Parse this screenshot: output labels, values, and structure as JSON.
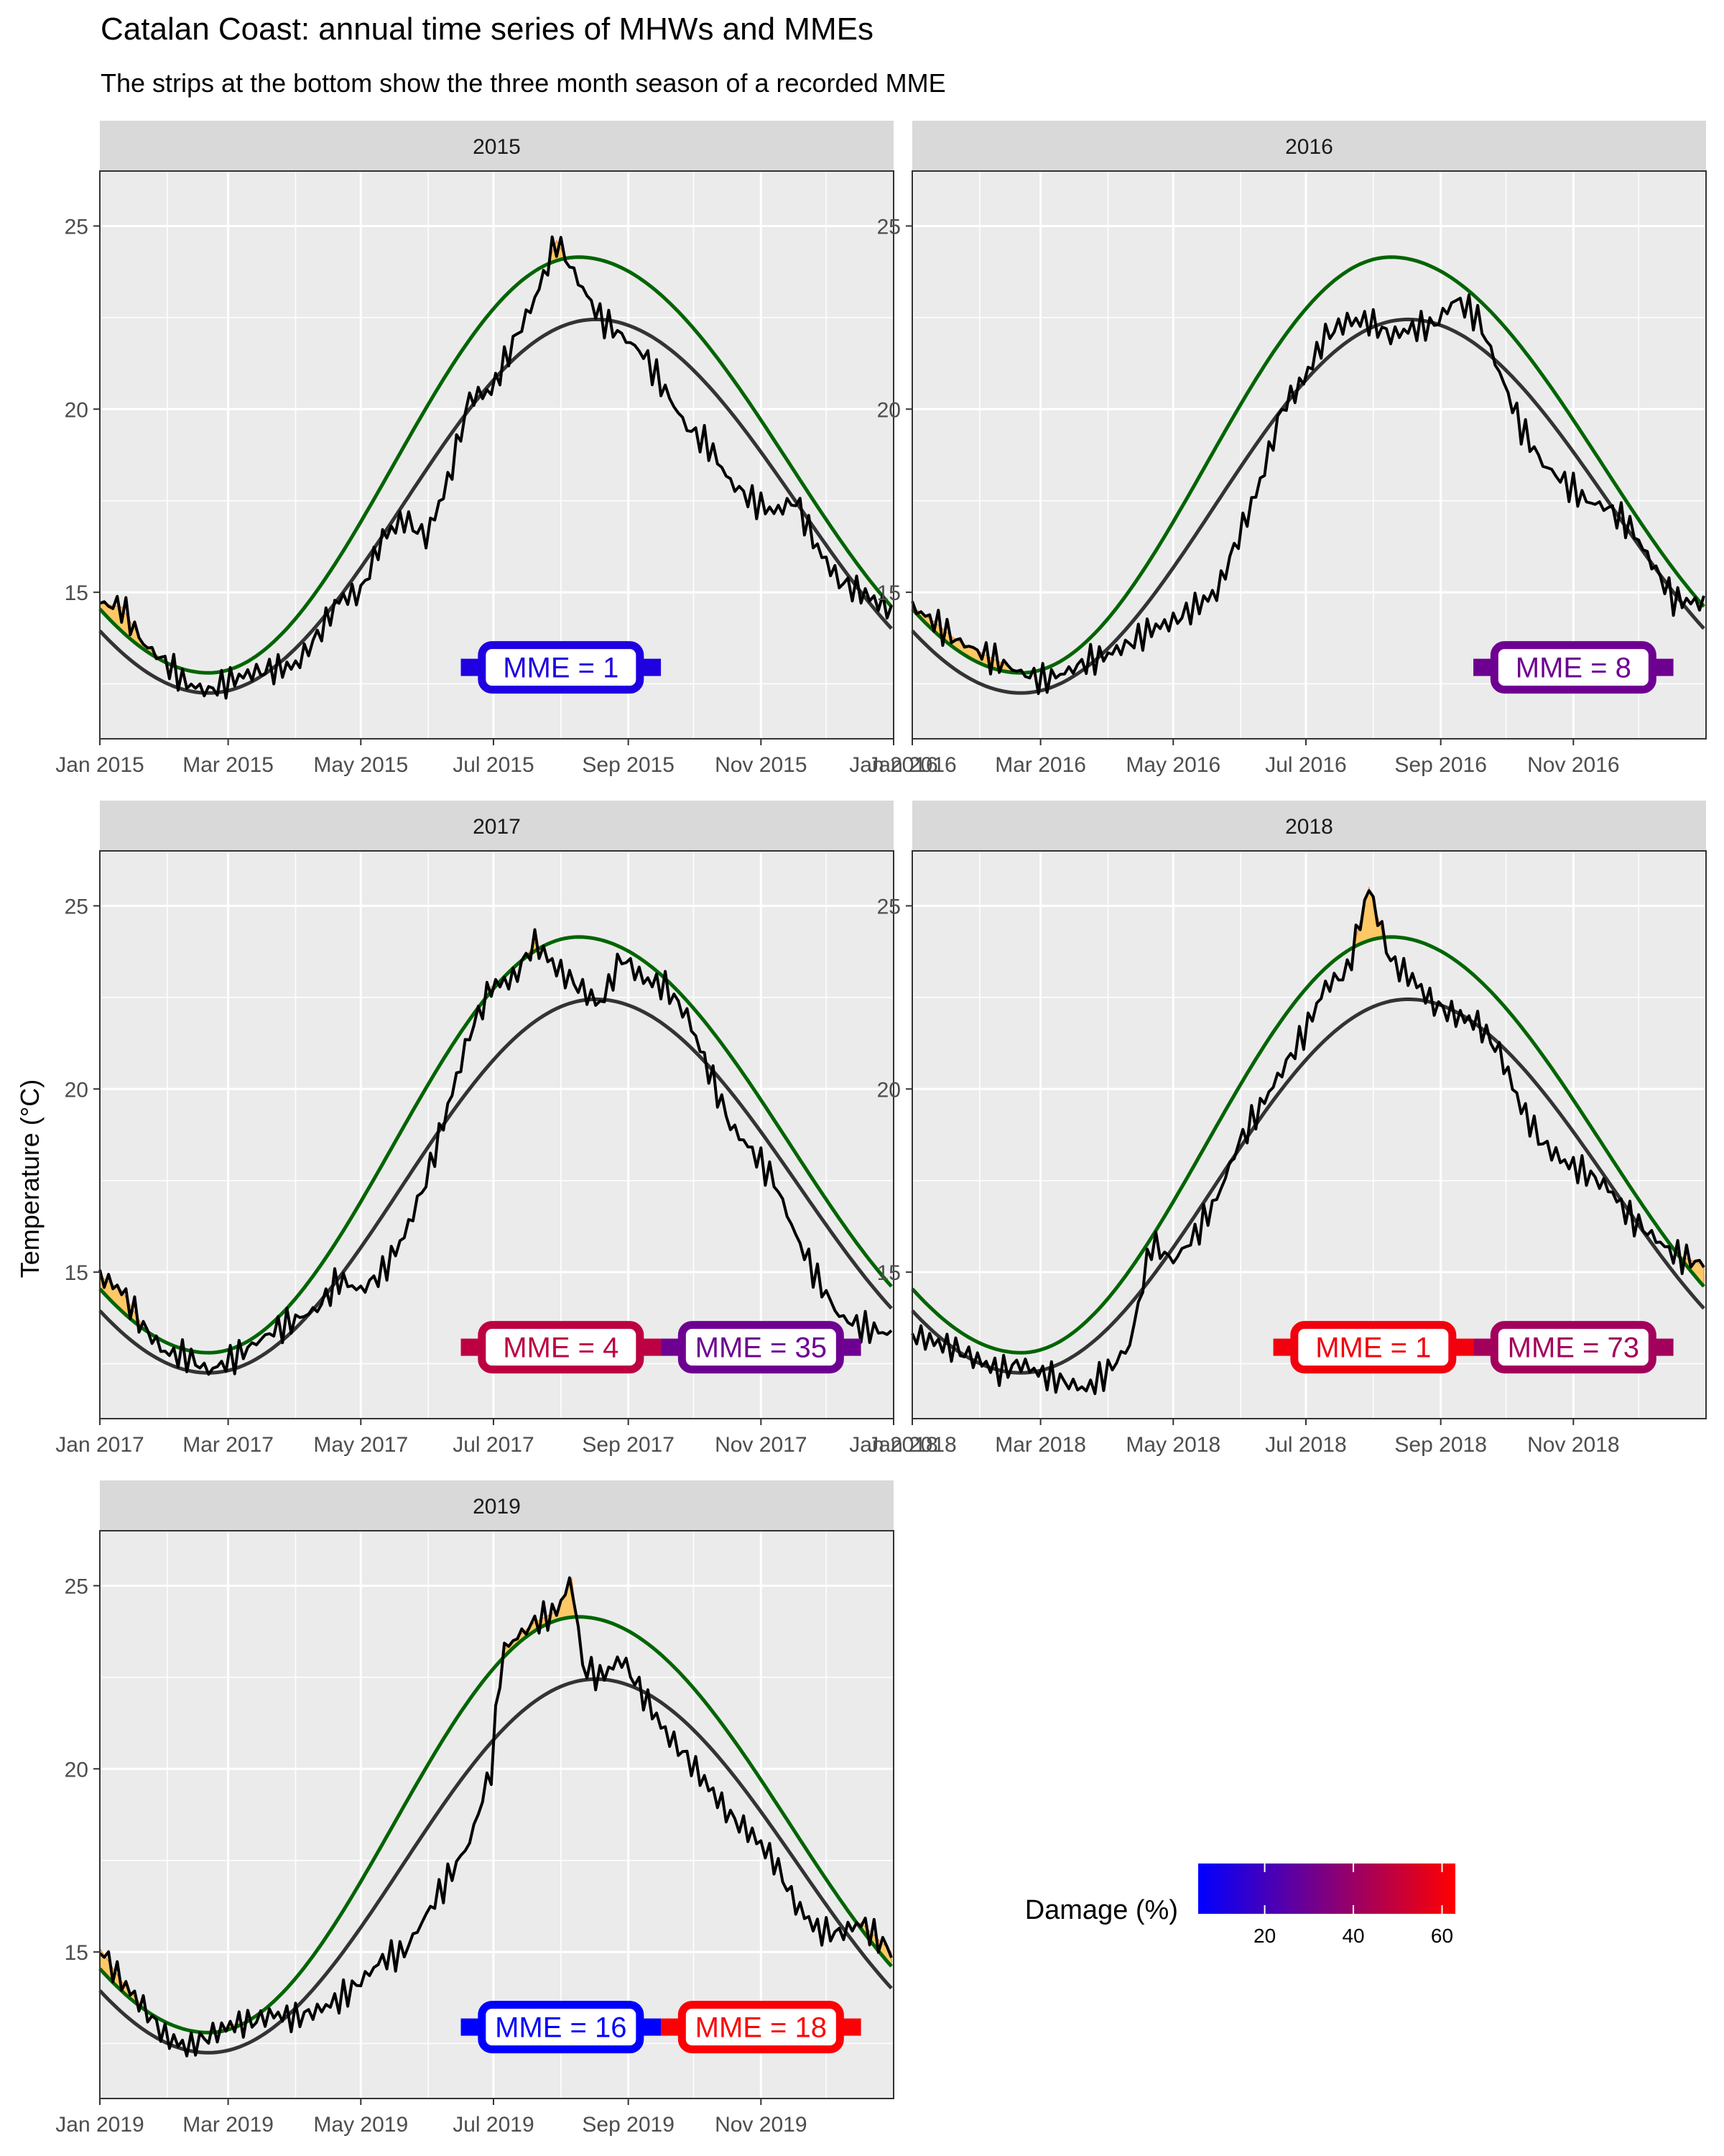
{
  "figure": {
    "title": "Catalan Coast: annual time series of MHWs and MMEs",
    "subtitle": "The strips at the bottom show the three month season of a recorded MME",
    "ylabel": "Temperature (°C)"
  },
  "colors": {
    "panel_bg": "#ebebeb",
    "strip_bg": "#d9d9d9",
    "grid": "#ffffff",
    "temperature_line": "#000000",
    "climatology_line": "#333333",
    "threshold_line": "#006400",
    "mhw_fill": "#ffc866",
    "mhw_peak_fill": "#f47d20"
  },
  "legend": {
    "title": "Damage (%)",
    "ticks": [
      "20",
      "40",
      "60"
    ],
    "tick_values": [
      20,
      40,
      60
    ],
    "range": [
      5,
      63
    ],
    "gradient_low": "#0000ff",
    "gradient_high": "#ff0000"
  },
  "chart_data": {
    "type": "line",
    "ylim": [
      11,
      26.5
    ],
    "yticks": [
      15,
      20,
      25
    ],
    "ytick_labels": [
      "15",
      "20",
      "25"
    ],
    "x_tick_months": [
      "Jan",
      "Mar",
      "May",
      "Jul",
      "Sep",
      "Nov"
    ],
    "climatology": {
      "min_doy": 50,
      "min": 12.25,
      "max_doy": 228,
      "max": 22.45
    },
    "threshold": {
      "min_doy": 50,
      "min": 12.8,
      "max_doy": 220,
      "max": 24.15
    },
    "panels": [
      {
        "year": "2015",
        "strip": "2015",
        "x_tick_labels": [
          "Jan 2015",
          "Mar 2015",
          "May 2015",
          "Jul 2015",
          "Sep 2015",
          "Nov 2015",
          "Jan 2016"
        ],
        "temperature_points": [
          [
            0,
            14.7
          ],
          [
            10,
            14.6
          ],
          [
            20,
            13.6
          ],
          [
            30,
            13.1
          ],
          [
            40,
            12.5
          ],
          [
            50,
            12.3
          ],
          [
            60,
            12.6
          ],
          [
            70,
            12.8
          ],
          [
            80,
            12.9
          ],
          [
            90,
            13.0
          ],
          [
            100,
            13.8
          ],
          [
            110,
            14.8
          ],
          [
            120,
            15.0
          ],
          [
            130,
            16.5
          ],
          [
            140,
            17.0
          ],
          [
            150,
            16.5
          ],
          [
            160,
            18.0
          ],
          [
            170,
            20.3
          ],
          [
            180,
            20.5
          ],
          [
            190,
            21.8
          ],
          [
            200,
            23.0
          ],
          [
            210,
            24.6
          ],
          [
            220,
            23.5
          ],
          [
            230,
            22.5
          ],
          [
            240,
            22.0
          ],
          [
            250,
            21.5
          ],
          [
            260,
            20.5
          ],
          [
            270,
            19.5
          ],
          [
            280,
            19.0
          ],
          [
            290,
            18.0
          ],
          [
            300,
            17.5
          ],
          [
            310,
            17.2
          ],
          [
            320,
            17.5
          ],
          [
            330,
            16.2
          ],
          [
            340,
            15.3
          ],
          [
            350,
            15.0
          ],
          [
            364,
            14.5
          ]
        ],
        "mme": [
          {
            "label": "MME = 1",
            "value": 1,
            "damage": 12,
            "start_doy": 166,
            "end_doy": 258
          }
        ]
      },
      {
        "year": "2016",
        "strip": "2016",
        "x_tick_labels": [
          "Jan 2016",
          "Mar 2016",
          "May 2016",
          "Jul 2016",
          "Sep 2016",
          "Nov 2016"
        ],
        "temperature_points": [
          [
            0,
            14.6
          ],
          [
            10,
            14.2
          ],
          [
            20,
            13.7
          ],
          [
            30,
            13.4
          ],
          [
            40,
            13.1
          ],
          [
            50,
            12.8
          ],
          [
            60,
            12.6
          ],
          [
            70,
            12.8
          ],
          [
            80,
            13.1
          ],
          [
            90,
            13.3
          ],
          [
            100,
            13.6
          ],
          [
            110,
            14.0
          ],
          [
            120,
            14.2
          ],
          [
            130,
            14.6
          ],
          [
            140,
            15.0
          ],
          [
            150,
            16.5
          ],
          [
            160,
            18.0
          ],
          [
            170,
            20.0
          ],
          [
            180,
            20.8
          ],
          [
            190,
            22.0
          ],
          [
            200,
            22.4
          ],
          [
            210,
            22.4
          ],
          [
            220,
            22.0
          ],
          [
            230,
            22.2
          ],
          [
            240,
            22.3
          ],
          [
            250,
            23.0
          ],
          [
            260,
            22.5
          ],
          [
            270,
            21.0
          ],
          [
            280,
            19.5
          ],
          [
            290,
            18.5
          ],
          [
            300,
            18.0
          ],
          [
            310,
            17.5
          ],
          [
            320,
            17.3
          ],
          [
            330,
            16.8
          ],
          [
            340,
            15.8
          ],
          [
            350,
            14.8
          ],
          [
            364,
            14.7
          ]
        ],
        "mme": [
          {
            "label": "MME = 8",
            "value": 8,
            "damage": 30,
            "start_doy": 258,
            "end_doy": 350
          }
        ]
      },
      {
        "year": "2017",
        "strip": "2017",
        "x_tick_labels": [
          "Jan 2017",
          "Mar 2017",
          "May 2017",
          "Jul 2017",
          "Sep 2017",
          "Nov 2017",
          "Jan 2018"
        ],
        "temperature_points": [
          [
            0,
            14.9
          ],
          [
            10,
            14.5
          ],
          [
            20,
            13.5
          ],
          [
            30,
            12.8
          ],
          [
            40,
            12.7
          ],
          [
            50,
            12.3
          ],
          [
            60,
            12.6
          ],
          [
            70,
            13.0
          ],
          [
            80,
            13.4
          ],
          [
            90,
            13.7
          ],
          [
            100,
            14.0
          ],
          [
            110,
            14.8
          ],
          [
            120,
            14.5
          ],
          [
            130,
            15.0
          ],
          [
            140,
            16.0
          ],
          [
            150,
            17.5
          ],
          [
            160,
            19.5
          ],
          [
            170,
            21.5
          ],
          [
            180,
            22.8
          ],
          [
            190,
            23.0
          ],
          [
            200,
            24.0
          ],
          [
            210,
            23.3
          ],
          [
            220,
            22.8
          ],
          [
            230,
            22.3
          ],
          [
            240,
            23.6
          ],
          [
            250,
            23.0
          ],
          [
            260,
            22.8
          ],
          [
            270,
            22.0
          ],
          [
            280,
            20.5
          ],
          [
            290,
            19.0
          ],
          [
            300,
            18.3
          ],
          [
            310,
            17.5
          ],
          [
            320,
            16.0
          ],
          [
            330,
            14.8
          ],
          [
            340,
            13.8
          ],
          [
            350,
            13.5
          ],
          [
            364,
            13.3
          ]
        ],
        "mme": [
          {
            "label": "MME = 4",
            "value": 4,
            "damage": 48,
            "start_doy": 166,
            "end_doy": 258
          },
          {
            "label": "MME = 35",
            "value": 35,
            "damage": 30,
            "start_doy": 258,
            "end_doy": 350
          }
        ]
      },
      {
        "year": "2018",
        "strip": "2018",
        "x_tick_labels": [
          "Jan 2018",
          "Mar 2018",
          "May 2018",
          "Jul 2018",
          "Sep 2018",
          "Nov 2018"
        ],
        "temperature_points": [
          [
            0,
            13.3
          ],
          [
            10,
            13.1
          ],
          [
            20,
            12.9
          ],
          [
            30,
            12.6
          ],
          [
            40,
            12.3
          ],
          [
            50,
            12.5
          ],
          [
            60,
            12.2
          ],
          [
            70,
            12.0
          ],
          [
            80,
            11.8
          ],
          [
            90,
            12.3
          ],
          [
            100,
            13.0
          ],
          [
            110,
            15.8
          ],
          [
            120,
            15.3
          ],
          [
            130,
            16.0
          ],
          [
            140,
            17.0
          ],
          [
            150,
            18.5
          ],
          [
            160,
            19.5
          ],
          [
            170,
            20.5
          ],
          [
            180,
            21.5
          ],
          [
            190,
            22.8
          ],
          [
            200,
            23.2
          ],
          [
            210,
            25.5
          ],
          [
            220,
            23.5
          ],
          [
            230,
            23.0
          ],
          [
            240,
            22.3
          ],
          [
            250,
            22.0
          ],
          [
            260,
            21.8
          ],
          [
            270,
            21.0
          ],
          [
            280,
            19.5
          ],
          [
            290,
            18.5
          ],
          [
            300,
            18.0
          ],
          [
            310,
            17.7
          ],
          [
            320,
            17.3
          ],
          [
            330,
            16.5
          ],
          [
            340,
            16.0
          ],
          [
            350,
            15.5
          ],
          [
            364,
            15.2
          ]
        ],
        "mme": [
          {
            "label": "MME = 1",
            "value": 1,
            "damage": 60,
            "start_doy": 166,
            "end_doy": 258
          },
          {
            "label": "MME = 73",
            "value": 73,
            "damage": 42,
            "start_doy": 258,
            "end_doy": 350
          }
        ]
      },
      {
        "year": "2019",
        "strip": "2019",
        "x_tick_labels": [
          "Jan 2019",
          "Mar 2019",
          "May 2019",
          "Jul 2019",
          "Sep 2019",
          "Nov 2019"
        ],
        "temperature_points": [
          [
            0,
            15.1
          ],
          [
            10,
            14.2
          ],
          [
            20,
            13.5
          ],
          [
            30,
            12.7
          ],
          [
            40,
            12.4
          ],
          [
            50,
            12.7
          ],
          [
            60,
            13.0
          ],
          [
            70,
            13.1
          ],
          [
            80,
            13.3
          ],
          [
            90,
            13.2
          ],
          [
            100,
            13.4
          ],
          [
            110,
            13.7
          ],
          [
            120,
            14.2
          ],
          [
            130,
            14.8
          ],
          [
            140,
            15.0
          ],
          [
            150,
            16.0
          ],
          [
            160,
            17.0
          ],
          [
            170,
            18.0
          ],
          [
            180,
            20.0
          ],
          [
            185,
            23.2
          ],
          [
            190,
            23.5
          ],
          [
            200,
            24.0
          ],
          [
            210,
            24.3
          ],
          [
            217,
            25.2
          ],
          [
            222,
            22.8
          ],
          [
            230,
            22.5
          ],
          [
            240,
            23.0
          ],
          [
            250,
            22.0
          ],
          [
            260,
            21.0
          ],
          [
            270,
            20.3
          ],
          [
            280,
            19.5
          ],
          [
            290,
            18.7
          ],
          [
            300,
            18.2
          ],
          [
            310,
            17.5
          ],
          [
            320,
            16.3
          ],
          [
            330,
            15.6
          ],
          [
            340,
            15.5
          ],
          [
            350,
            15.8
          ],
          [
            364,
            15.0
          ]
        ],
        "mme": [
          {
            "label": "MME = 16",
            "value": 16,
            "damage": 5,
            "start_doy": 166,
            "end_doy": 258
          },
          {
            "label": "MME = 18",
            "value": 18,
            "damage": 62,
            "start_doy": 258,
            "end_doy": 350
          }
        ]
      }
    ]
  }
}
